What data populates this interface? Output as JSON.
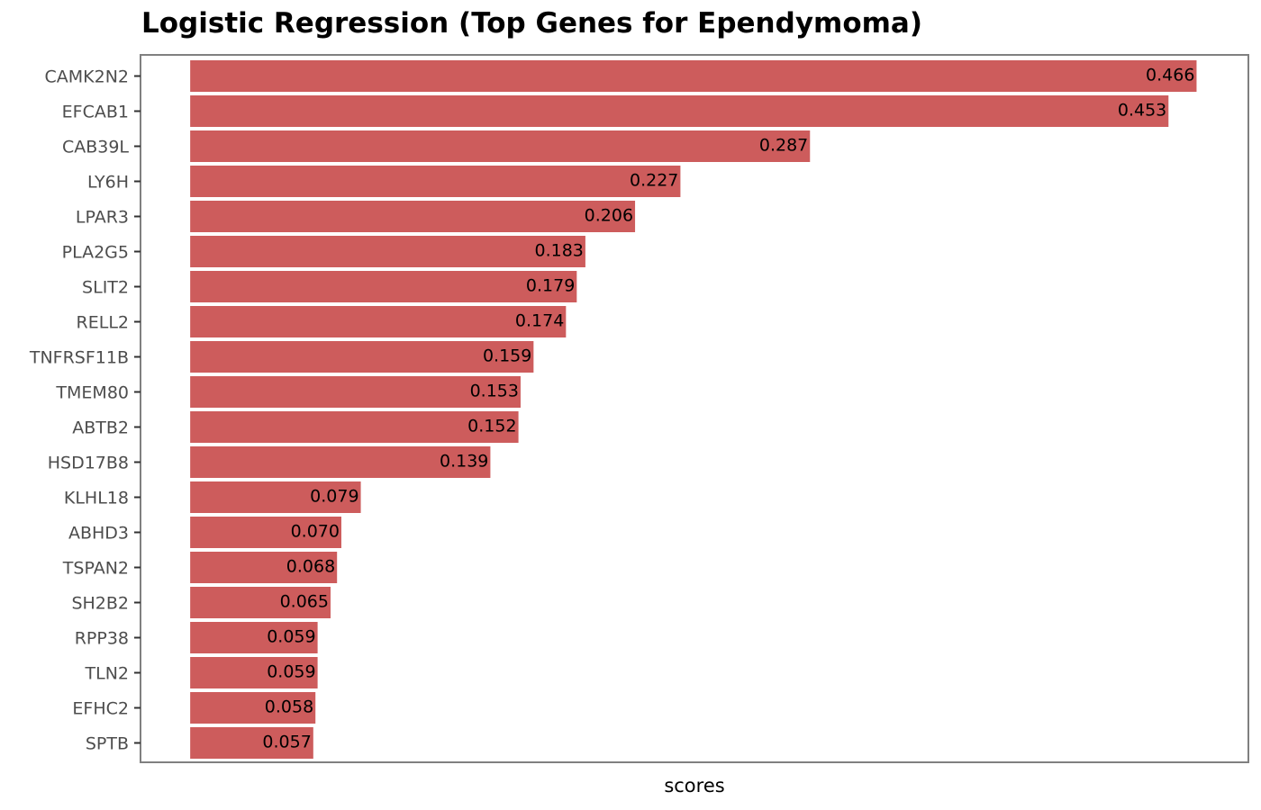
{
  "chart_data": {
    "type": "bar",
    "orientation": "horizontal",
    "title": "Logistic Regression (Top Genes for Ependymoma)",
    "xlabel": "scores",
    "ylabel": "",
    "bar_color": "#cd5c5c",
    "frame_color": "#808080",
    "grid": false,
    "legend": "none",
    "x_tick_labels_shown": false,
    "categories": [
      "CAMK2N2",
      "EFCAB1",
      "CAB39L",
      "LY6H",
      "LPAR3",
      "PLA2G5",
      "SLIT2",
      "RELL2",
      "TNFRSF11B",
      "TMEM80",
      "ABTB2",
      "HSD17B8",
      "KLHL18",
      "ABHD3",
      "TSPAN2",
      "SH2B2",
      "RPP38",
      "TLN2",
      "EFHC2",
      "SPTB"
    ],
    "values": [
      0.466,
      0.453,
      0.287,
      0.227,
      0.206,
      0.183,
      0.179,
      0.174,
      0.159,
      0.153,
      0.152,
      0.139,
      0.079,
      0.07,
      0.068,
      0.065,
      0.059,
      0.059,
      0.058,
      0.057
    ],
    "value_labels": [
      "0.466",
      "0.453",
      "0.287",
      "0.227",
      "0.206",
      "0.183",
      "0.179",
      "0.174",
      "0.159",
      "0.153",
      "0.152",
      "0.139",
      "0.079",
      "0.070",
      "0.068",
      "0.065",
      "0.059",
      "0.059",
      "0.058",
      "0.057"
    ],
    "xlim": [
      -0.023,
      0.49
    ]
  }
}
